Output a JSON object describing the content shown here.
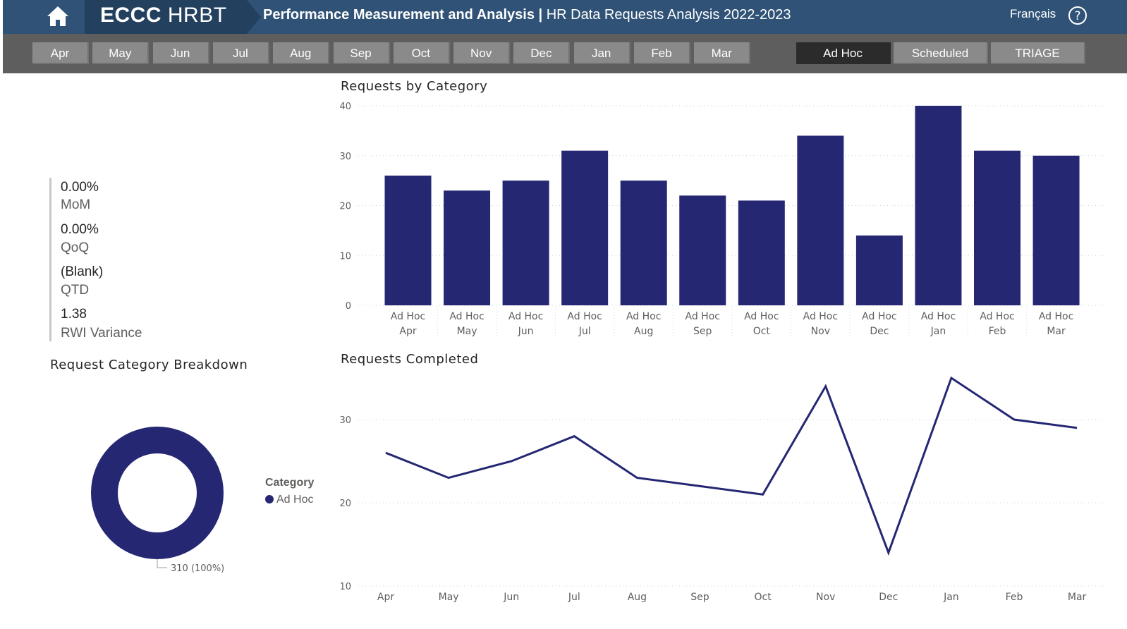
{
  "header": {
    "brand_bold": "ECCC",
    "brand_light": "HRBT",
    "title_bold": "Performance Measurement and Analysis |",
    "title_rest": "HR Data Requests Analysis 2022-2023",
    "language_link": "Français",
    "icons": [
      "home-icon",
      "help-icon"
    ]
  },
  "month_slicer": [
    "Apr",
    "May",
    "Jun",
    "Jul",
    "Aug",
    "Sep",
    "Oct",
    "Nov",
    "Dec",
    "Jan",
    "Feb",
    "Mar"
  ],
  "category_slicer": [
    {
      "label": "Ad Hoc",
      "selected": true
    },
    {
      "label": "Scheduled",
      "selected": false
    },
    {
      "label": "TRIAGE",
      "selected": false
    }
  ],
  "kpis": [
    {
      "value": "0.00%",
      "label": "MoM"
    },
    {
      "value": "0.00%",
      "label": "QoQ"
    },
    {
      "value": "(Blank)",
      "label": "QTD"
    },
    {
      "value": "1.38",
      "label": "RWI Variance"
    }
  ],
  "colors": {
    "series": "#252773",
    "header": "#2f5276",
    "filter_bar": "#5e5e5e"
  },
  "chart_data": [
    {
      "type": "bar",
      "title": "Requests by Category",
      "categories": [
        "Ad Hoc|Apr",
        "Ad Hoc|May",
        "Ad Hoc|Jun",
        "Ad Hoc|Jul",
        "Ad Hoc|Aug",
        "Ad Hoc|Sep",
        "Ad Hoc|Oct",
        "Ad Hoc|Nov",
        "Ad Hoc|Dec",
        "Ad Hoc|Jan",
        "Ad Hoc|Feb",
        "Ad Hoc|Mar"
      ],
      "values": [
        26,
        23,
        25,
        31,
        25,
        22,
        21,
        34,
        14,
        40,
        31,
        30
      ],
      "yticks": [
        0,
        10,
        20,
        30,
        40
      ],
      "ylim": [
        0,
        40
      ],
      "grid": true
    },
    {
      "type": "line",
      "title": "Requests Completed",
      "x": [
        "Apr",
        "May",
        "Jun",
        "Jul",
        "Aug",
        "Sep",
        "Oct",
        "Nov",
        "Dec",
        "Jan",
        "Feb",
        "Mar"
      ],
      "values": [
        26,
        23,
        25,
        28,
        23,
        22,
        21,
        34,
        14,
        35,
        30,
        29
      ],
      "yticks": [
        10,
        20,
        30
      ],
      "ylim": [
        10,
        36
      ],
      "grid": true
    },
    {
      "type": "pie",
      "title": "Request Category Breakdown",
      "legend_title": "Category",
      "slices": [
        {
          "name": "Ad Hoc",
          "value": 310,
          "label": "310 (100%)"
        }
      ],
      "legend_position": "right"
    }
  ]
}
